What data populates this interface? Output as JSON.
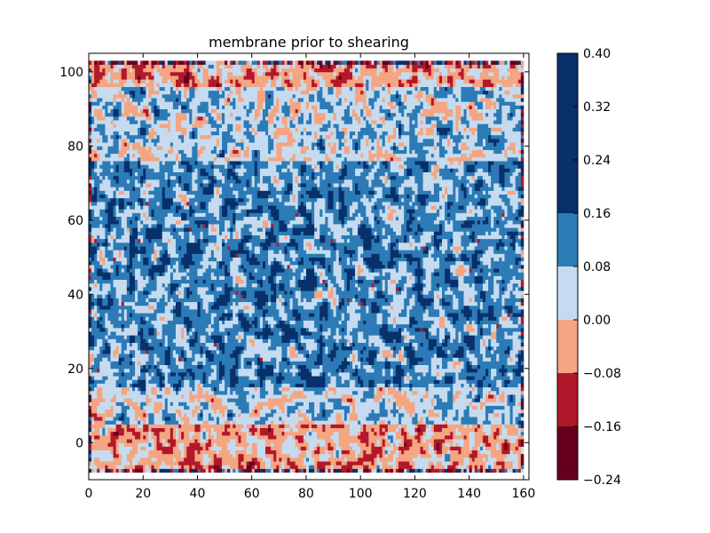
{
  "chart_data": {
    "type": "heatmap",
    "subtype": "filled-contour",
    "title": "membrane prior to shearing",
    "xlabel": "",
    "ylabel": "",
    "xlim": [
      0,
      162
    ],
    "ylim": [
      -10,
      105
    ],
    "data_extent": {
      "x": [
        0,
        160
      ],
      "y": [
        -8,
        103
      ]
    },
    "xticks": [
      0,
      20,
      40,
      60,
      80,
      100,
      120,
      140,
      160
    ],
    "yticks": [
      0,
      20,
      40,
      60,
      80,
      100
    ],
    "grid": false,
    "legend": "none",
    "colorbar": {
      "position": "right",
      "levels": [
        -0.24,
        -0.16,
        -0.08,
        0.0,
        0.08,
        0.16,
        0.24,
        0.32,
        0.4
      ],
      "tick_labels": [
        "−0.24",
        "−0.16",
        "−0.08",
        "0.00",
        "0.08",
        "0.16",
        "0.24",
        "0.32",
        "0.40"
      ],
      "bands": [
        {
          "range": [
            -0.24,
            -0.16
          ],
          "color": "#67001f"
        },
        {
          "range": [
            -0.16,
            -0.08
          ],
          "color": "#b2182b"
        },
        {
          "range": [
            -0.08,
            0.0
          ],
          "color": "#f4a582"
        },
        {
          "range": [
            0.0,
            0.08
          ],
          "color": "#c6dbef"
        },
        {
          "range": [
            0.08,
            0.16
          ],
          "color": "#2c7bb6"
        },
        {
          "range": [
            0.16,
            0.4
          ],
          "color": "#08306b"
        }
      ]
    },
    "colormap": "RdBu",
    "value_pattern": {
      "edge_bands_y": [
        [
          -8,
          5
        ],
        [
          95,
          103
        ]
      ],
      "edge_band_dominant_range": [
        -0.08,
        0.0
      ],
      "interior_y": [
        5,
        95
      ],
      "interior_dominant_ranges": [
        [
          0.0,
          0.08
        ],
        [
          0.08,
          0.16
        ],
        [
          0.16,
          0.4
        ]
      ],
      "interior_peak_y": [
        15,
        75
      ]
    }
  }
}
